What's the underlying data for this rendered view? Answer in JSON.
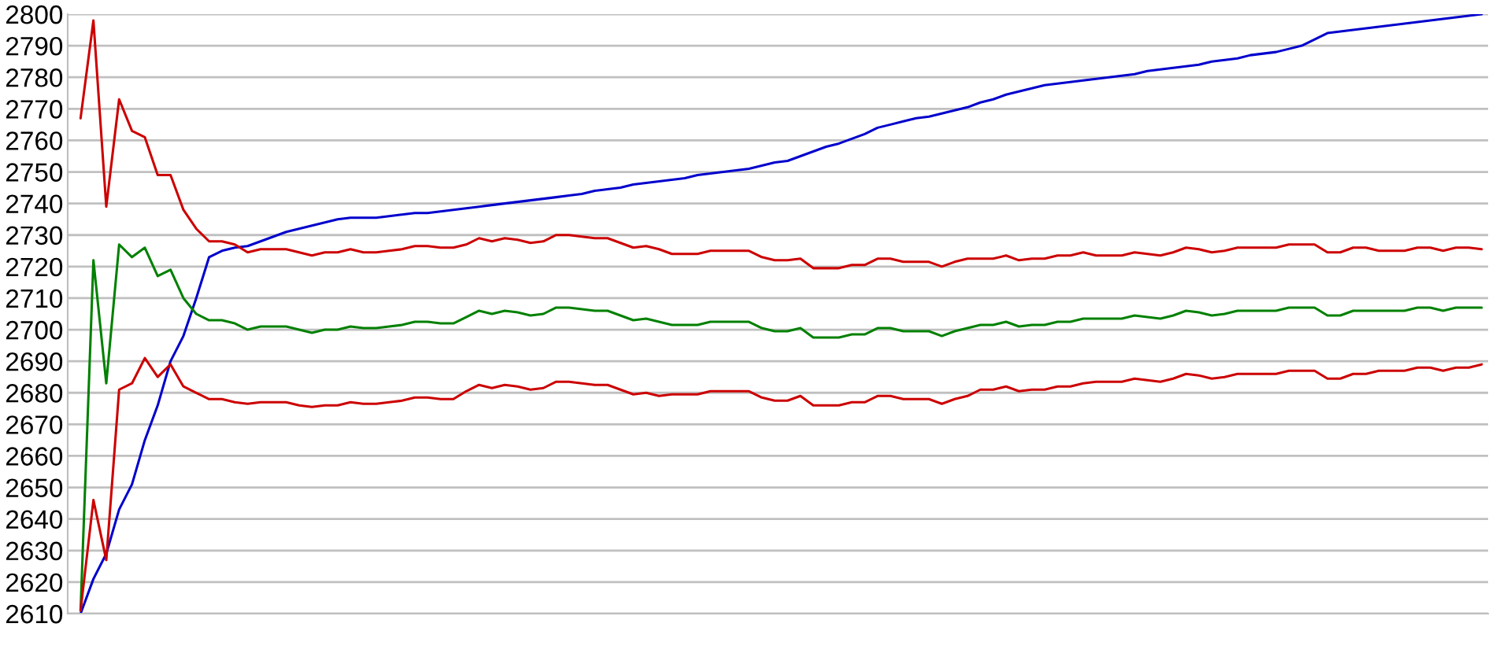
{
  "chart_data": {
    "type": "line",
    "categories": [
      null,
      null,
      null,
      null,
      null,
      null,
      null,
      null,
      null,
      null,
      null,
      null,
      null,
      null,
      null,
      null,
      null,
      null,
      null,
      null,
      null,
      null,
      null,
      null,
      null,
      null,
      null,
      null,
      null,
      null,
      null,
      null,
      null,
      null,
      null,
      null,
      null,
      null,
      null,
      null,
      null,
      null,
      null,
      null,
      null,
      null,
      null,
      null,
      null,
      null,
      null,
      null,
      null,
      null,
      null,
      null,
      null,
      null,
      null,
      null,
      null,
      null,
      null,
      null,
      null,
      null,
      null,
      null,
      null,
      null,
      null,
      null,
      null,
      null,
      null,
      null,
      null,
      null,
      null,
      null,
      null,
      null,
      null,
      null,
      null,
      null,
      null,
      null,
      null,
      null,
      null,
      null,
      null,
      null,
      null,
      null,
      null,
      null,
      null,
      null,
      null,
      null,
      null,
      null,
      null,
      null,
      null,
      null,
      null,
      null
    ],
    "series": [
      {
        "color": "#0000cc",
        "values": [
          2610,
          2621,
          2629,
          2643,
          2651,
          2665,
          2676,
          2690,
          2698,
          2710,
          2723,
          2725,
          2726,
          2726.5,
          2728,
          2729.5,
          2731,
          2732,
          2733,
          2734,
          2735,
          2735.5,
          2735.5,
          2735.5,
          2736,
          2736.5,
          2737,
          2737,
          2737.5,
          2738,
          2738.5,
          2739,
          2739.5,
          2740,
          2740.5,
          2741,
          2741.5,
          2742,
          2742.5,
          2743,
          2744,
          2744.5,
          2745,
          2746,
          2746.5,
          2747,
          2747.5,
          2748,
          2749,
          2749.5,
          2750,
          2750.5,
          2751,
          2752,
          2753,
          2753.5,
          2755,
          2756.5,
          2758,
          2759,
          2760.5,
          2762,
          2764,
          2765,
          2766,
          2767,
          2767.5,
          2768.5,
          2769.5,
          2770.5,
          2772,
          2773,
          2774.5,
          2775.5,
          2776.5,
          2777.5,
          2778,
          2778.5,
          2779,
          2779.5,
          2780,
          2780.5,
          2781,
          2782,
          2782.5,
          2783,
          2783.5,
          2784,
          2785,
          2785.5,
          2786,
          2787,
          2787.5,
          2788,
          2789,
          2790,
          2792,
          2794,
          2794.5,
          2795,
          2795.5,
          2796,
          2796.5,
          2797,
          2797.5,
          2798,
          2798.5,
          2799,
          2799.5,
          2800
        ]
      },
      {
        "color": "#cc0000",
        "values": [
          2767,
          2798,
          2739,
          2773,
          2763,
          2761,
          2749,
          2749,
          2738,
          2732,
          2728,
          2728,
          2727,
          2724.5,
          2725.5,
          2725.5,
          2725.5,
          2724.5,
          2723.5,
          2724.5,
          2724.5,
          2725.5,
          2724.5,
          2724.5,
          2725,
          2725.5,
          2726.5,
          2726.5,
          2726,
          2726,
          2727,
          2729,
          2728,
          2729,
          2728.5,
          2727.5,
          2728,
          2730,
          2730,
          2729.5,
          2729,
          2729,
          2727.5,
          2726,
          2726.5,
          2725.5,
          2724,
          2724,
          2724,
          2725,
          2725,
          2725,
          2725,
          2723,
          2722,
          2722,
          2722.5,
          2719.5,
          2719.5,
          2719.5,
          2720.5,
          2720.5,
          2722.5,
          2722.5,
          2721.5,
          2721.5,
          2721.5,
          2720,
          2721.5,
          2722.5,
          2722.5,
          2722.5,
          2723.5,
          2722,
          2722.5,
          2722.5,
          2723.5,
          2723.5,
          2724.5,
          2723.5,
          2723.5,
          2723.5,
          2724.5,
          2724,
          2723.5,
          2724.5,
          2726,
          2725.5,
          2724.5,
          2725,
          2726,
          2726,
          2726,
          2726,
          2727,
          2727,
          2727,
          2724.5,
          2724.5,
          2726,
          2726,
          2725,
          2725,
          2725,
          2726,
          2726,
          2725,
          2726,
          2726,
          2725.5
        ]
      },
      {
        "color": "#008000",
        "values": [
          2611,
          2722,
          2683,
          2727,
          2723,
          2726,
          2717,
          2719,
          2710,
          2705,
          2703,
          2703,
          2702,
          2700,
          2701,
          2701,
          2701,
          2700,
          2699,
          2700,
          2700,
          2701,
          2700.5,
          2700.5,
          2701,
          2701.5,
          2702.5,
          2702.5,
          2702,
          2702,
          2704,
          2706,
          2705,
          2706,
          2705.5,
          2704.5,
          2705,
          2707,
          2707,
          2706.5,
          2706,
          2706,
          2704.5,
          2703,
          2703.5,
          2702.5,
          2701.5,
          2701.5,
          2701.5,
          2702.5,
          2702.5,
          2702.5,
          2702.5,
          2700.5,
          2699.5,
          2699.5,
          2700.5,
          2697.5,
          2697.5,
          2697.5,
          2698.5,
          2698.5,
          2700.5,
          2700.5,
          2699.5,
          2699.5,
          2699.5,
          2698,
          2699.5,
          2700.5,
          2701.5,
          2701.5,
          2702.5,
          2701,
          2701.5,
          2701.5,
          2702.5,
          2702.5,
          2703.5,
          2703.5,
          2703.5,
          2703.5,
          2704.5,
          2704,
          2703.5,
          2704.5,
          2706,
          2705.5,
          2704.5,
          2705,
          2706,
          2706,
          2706,
          2706,
          2707,
          2707,
          2707,
          2704.5,
          2704.5,
          2706,
          2706,
          2706,
          2706,
          2706,
          2707,
          2707,
          2706,
          2707,
          2707,
          2707
        ]
      },
      {
        "color": "#cc0000",
        "values": [
          2611,
          2646,
          2627,
          2681,
          2683,
          2691,
          2685,
          2689,
          2682,
          2680,
          2678,
          2678,
          2677,
          2676.5,
          2677,
          2677,
          2677,
          2676,
          2675.5,
          2676,
          2676,
          2677,
          2676.5,
          2676.5,
          2677,
          2677.5,
          2678.5,
          2678.5,
          2678,
          2678,
          2680.5,
          2682.5,
          2681.5,
          2682.5,
          2682,
          2681,
          2681.5,
          2683.5,
          2683.5,
          2683,
          2682.5,
          2682.5,
          2681,
          2679.5,
          2680,
          2679,
          2679.5,
          2679.5,
          2679.5,
          2680.5,
          2680.5,
          2680.5,
          2680.5,
          2678.5,
          2677.5,
          2677.5,
          2679,
          2676,
          2676,
          2676,
          2677,
          2677,
          2679,
          2679,
          2678,
          2678,
          2678,
          2676.5,
          2678,
          2679,
          2681,
          2681,
          2682,
          2680.5,
          2681,
          2681,
          2682,
          2682,
          2683,
          2683.5,
          2683.5,
          2683.5,
          2684.5,
          2684,
          2683.5,
          2684.5,
          2686,
          2685.5,
          2684.5,
          2685,
          2686,
          2686,
          2686,
          2686,
          2687,
          2687,
          2687,
          2684.5,
          2684.5,
          2686,
          2686,
          2687,
          2687,
          2687,
          2688,
          2688,
          2687,
          2688,
          2688,
          2689
        ]
      }
    ],
    "ylim": [
      2610,
      2800
    ],
    "yticks": [
      2610,
      2620,
      2630,
      2640,
      2650,
      2660,
      2670,
      2680,
      2690,
      2700,
      2710,
      2720,
      2730,
      2740,
      2750,
      2760,
      2770,
      2780,
      2790,
      2800
    ],
    "tick_labels": "y",
    "grid": "y",
    "marker": "none",
    "line_style": "solid"
  }
}
